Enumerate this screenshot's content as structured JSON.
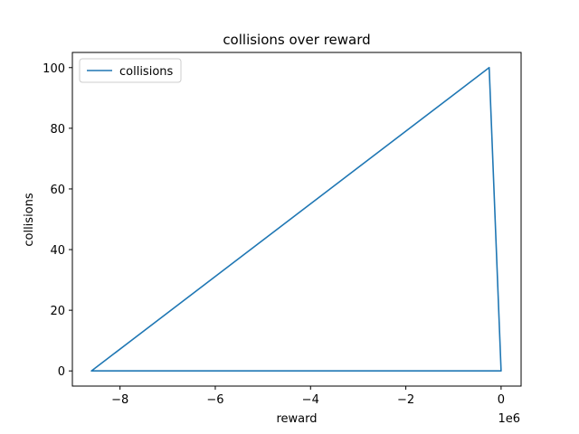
{
  "chart_data": {
    "type": "line",
    "title": "collisions over reward",
    "xlabel": "reward",
    "ylabel": "collisions",
    "x_offset_label": "1e6",
    "xlim": [
      -9.0,
      0.42
    ],
    "ylim": [
      -5,
      105
    ],
    "x_ticks": [
      -8,
      -6,
      -4,
      -2,
      0
    ],
    "x_tick_labels": [
      "−8",
      "−6",
      "−4",
      "−2",
      "0"
    ],
    "y_ticks": [
      0,
      20,
      40,
      60,
      80,
      100
    ],
    "y_tick_labels": [
      "0",
      "20",
      "40",
      "60",
      "80",
      "100"
    ],
    "legend": {
      "placement": "top-left",
      "entries": [
        "collisions"
      ]
    },
    "grid": false,
    "series": [
      {
        "name": "collisions",
        "color": "#1f77b4",
        "x": [
          0,
          -8.6,
          -0.25,
          0,
          -8.6
        ],
        "y": [
          0,
          0,
          100,
          0,
          0
        ]
      }
    ]
  }
}
